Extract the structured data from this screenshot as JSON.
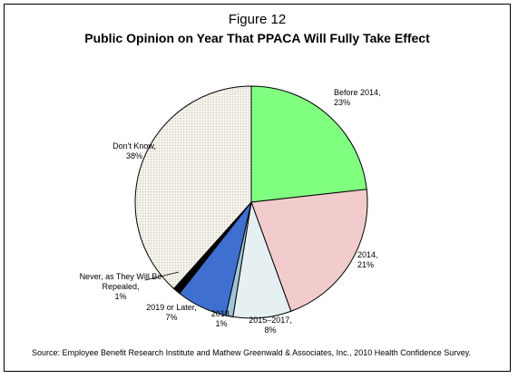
{
  "figure": {
    "label": "Figure 12",
    "title": "Public Opinion on Year That PPACA Will Fully Take Effect",
    "source": "Source: Employee Benefit Research Institute and Mathew Greenwald  & Associates, Inc., 2010 Health Confidence Survey."
  },
  "chart_data": {
    "type": "pie",
    "title": "Public Opinion on Year That PPACA Will Fully Take Effect",
    "slices": [
      {
        "label": "Before 2014,",
        "value_label": "23%",
        "value": 23,
        "color": "#80ff80"
      },
      {
        "label": "2014,",
        "value_label": "21%",
        "value": 21,
        "color": "#f2cccc"
      },
      {
        "label": "2015–2017,",
        "value_label": "8%",
        "value": 8,
        "color": "#e6f0f2"
      },
      {
        "label": "2018,",
        "value_label": "1%",
        "value": 1,
        "color": "#a0c4d8"
      },
      {
        "label": "2019 or Later,",
        "value_label": "7%",
        "value": 7,
        "color": "#3f6fcf"
      },
      {
        "label": "Never, as They Will Be Repealed,",
        "value_label": "1%",
        "value": 1,
        "color": "#000000"
      },
      {
        "label": "Don't Know,",
        "value_label": "38%",
        "value": 38,
        "color": "#eeebe2"
      }
    ]
  }
}
